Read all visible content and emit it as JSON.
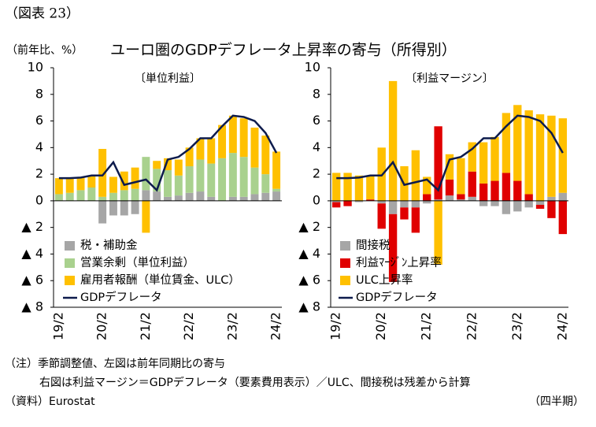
{
  "figure_label": "（図表 23）",
  "title": "ユーロ圏のGDPデフレータ上昇率の寄与（所得別）",
  "unit": "（前年比、%）",
  "notes": [
    "（注）季節調整値、左図は前年同期比の寄与",
    "右図は利益マージン＝GDPデフレータ（要素費用表示）／ULC、間接税は残差から計算"
  ],
  "source": "（資料）Eurostat",
  "x_unit": "（四半期）",
  "chart_data": [
    {
      "type": "bar",
      "subtitle": "〔単位利益〕",
      "categories": [
        "19/2",
        null,
        null,
        null,
        "20/2",
        null,
        null,
        null,
        "21/2",
        null,
        null,
        null,
        "22/2",
        null,
        null,
        null,
        "23/2",
        null,
        null,
        null,
        "24/2"
      ],
      "ylim": [
        -8,
        10
      ],
      "yticks": [
        10,
        8,
        6,
        4,
        2,
        0,
        {
          "value": -2,
          "label": "▲ 2"
        },
        {
          "value": -4,
          "label": "▲ 4"
        },
        {
          "value": -6,
          "label": "▲ 6"
        },
        {
          "value": -8,
          "label": "▲ 8"
        }
      ],
      "series": [
        {
          "name": "税・補助金",
          "color": "#a6a6a6",
          "values": [
            0,
            0,
            0,
            0,
            -1.7,
            -1.1,
            -1.1,
            -1.0,
            0.8,
            0.7,
            0.3,
            0.4,
            0.6,
            0.7,
            0.3,
            0,
            0.3,
            0.3,
            0.5,
            0.6,
            0.7
          ]
        },
        {
          "name": "営業余剰（単位利益）",
          "color": "#a9d18e",
          "values": [
            0.5,
            0.6,
            0.8,
            1.0,
            0.3,
            0.6,
            0.8,
            0.9,
            2.5,
            1.7,
            2.0,
            1.5,
            2.0,
            2.4,
            2.5,
            3.2,
            3.3,
            3.0,
            2.0,
            1.4,
            0.2
          ]
        },
        {
          "name": "雇用者報酬（単位賃金、ULC）",
          "color": "#ffc000",
          "values": [
            1.2,
            1.1,
            1.0,
            0.9,
            3.6,
            1.2,
            1.4,
            1.6,
            -2.4,
            0.6,
            0.9,
            1.2,
            1.4,
            1.6,
            1.9,
            2.5,
            2.8,
            2.9,
            3.0,
            2.9,
            2.8
          ]
        },
        {
          "name": "GDPデフレータ",
          "color": "#0d1b4c",
          "type": "line",
          "values": [
            1.7,
            1.7,
            1.75,
            1.9,
            1.9,
            2.9,
            1.2,
            1.4,
            1.6,
            0.8,
            3.1,
            3.3,
            3.9,
            4.7,
            4.7,
            5.6,
            6.4,
            6.3,
            6.0,
            5.1,
            3.6
          ]
        }
      ]
    },
    {
      "type": "bar",
      "subtitle": "〔利益マージン〕",
      "categories": [
        "19/2",
        null,
        null,
        null,
        "20/2",
        null,
        null,
        null,
        "21/2",
        null,
        null,
        null,
        "22/2",
        null,
        null,
        null,
        "23/2",
        null,
        null,
        null,
        "24/2"
      ],
      "ylim": [
        -8,
        10
      ],
      "yticks": [
        10,
        8,
        6,
        4,
        2,
        0,
        {
          "value": -2,
          "label": "▲ 2"
        },
        {
          "value": -4,
          "label": "▲ 4"
        },
        {
          "value": -6,
          "label": "▲ 6"
        },
        {
          "value": -8,
          "label": "▲ 8"
        }
      ],
      "series": [
        {
          "name": "間接税",
          "color": "#a6a6a6",
          "values": [
            -0.1,
            0,
            -0.1,
            0,
            -0.2,
            -1.0,
            -0.5,
            -0.5,
            -0.2,
            0.1,
            0.4,
            0.1,
            0.3,
            -0.4,
            -0.4,
            -1.0,
            -0.8,
            -0.5,
            -0.3,
            0.3,
            0.6
          ]
        },
        {
          "name": "利益ﾏｰｼﾞﾝ上昇率",
          "color": "#e00000",
          "values": [
            -0.4,
            -0.4,
            0,
            0.1,
            -1.9,
            -5.1,
            -0.9,
            -1.9,
            0.5,
            5.5,
            1.2,
            0.4,
            1.9,
            1.3,
            1.5,
            2.1,
            1.5,
            0.5,
            -0.3,
            -1.3,
            -2.5
          ]
        },
        {
          "name": "ULC上昇率",
          "color": "#ffc000",
          "values": [
            2.1,
            2.1,
            1.9,
            1.8,
            4.0,
            9.0,
            2.6,
            3.8,
            1.3,
            -4.8,
            1.9,
            2.7,
            2.2,
            3.1,
            3.3,
            4.5,
            5.7,
            6.3,
            6.5,
            6.1,
            5.6
          ]
        },
        {
          "name": "GDPデフレータ",
          "color": "#0d1b4c",
          "type": "line",
          "values": [
            1.7,
            1.7,
            1.75,
            1.9,
            1.9,
            2.9,
            1.2,
            1.4,
            1.6,
            0.8,
            3.1,
            3.3,
            3.9,
            4.7,
            4.7,
            5.6,
            6.4,
            6.3,
            6.0,
            5.1,
            3.6
          ]
        }
      ]
    }
  ]
}
